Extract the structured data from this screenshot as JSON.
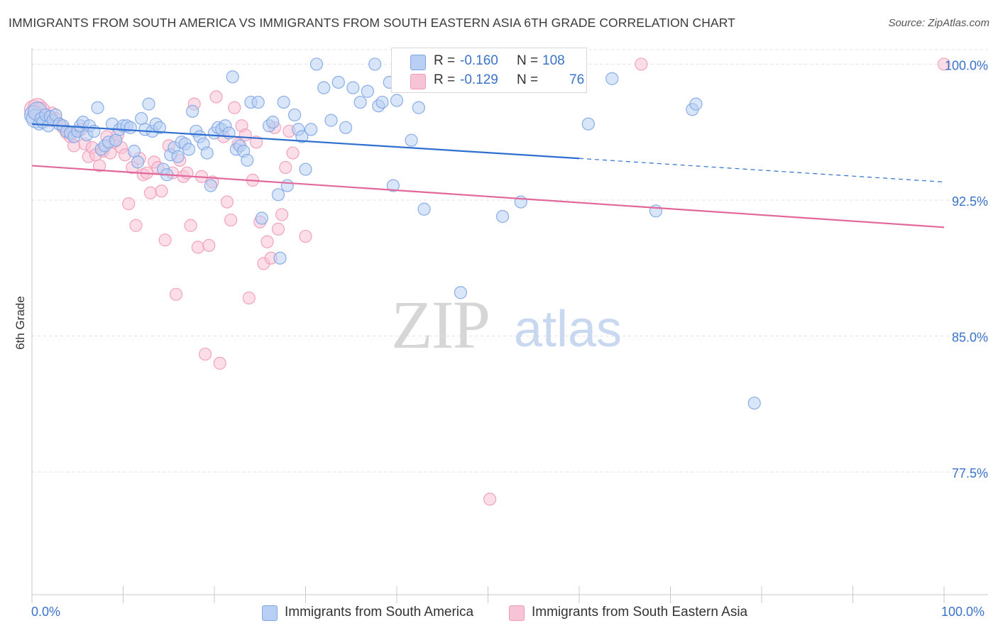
{
  "title": "IMMIGRANTS FROM SOUTH AMERICA VS IMMIGRANTS FROM SOUTH EASTERN ASIA 6TH GRADE CORRELATION CHART",
  "source": "Source: ZipAtlas.com",
  "watermark": {
    "zip": "ZIP",
    "atlas": "atlas"
  },
  "colors": {
    "blue": "#7ea6e6",
    "blue_fill": "#b9cff3",
    "blue_line": "#2f6fcf",
    "pink": "#f29ab8",
    "pink_fill": "#f7c3d6",
    "pink_line": "#e2679a",
    "axis_text": "#3a73c9",
    "grid": "#dde2ea"
  },
  "legend": {
    "rows": [
      {
        "r_label": "R =",
        "r_value": "-0.160",
        "n_label": "N =",
        "n_value": "108"
      },
      {
        "r_label": "R =",
        "r_value": "-0.129",
        "n_label": "N =",
        "n_value": "76"
      }
    ]
  },
  "bottom_legend": {
    "series1": "Immigrants from South America",
    "series2": "Immigrants from South Eastern Asia"
  },
  "x_axis": {
    "min_label": "0.0%",
    "max_label": "100.0%"
  },
  "chart_data": {
    "type": "scatter",
    "ylabel": "6th Grade",
    "xlim": [
      0,
      100
    ],
    "ylim": [
      71.2,
      100.8
    ],
    "yticks": [
      77.5,
      85.0,
      92.5,
      100.0
    ],
    "ytick_labels": [
      "77.5%",
      "85.0%",
      "92.5%",
      "100.0%"
    ],
    "grid": true,
    "series": [
      {
        "name": "Immigrants from South America",
        "r": -0.16,
        "n": 108,
        "trend": {
          "x0": 0,
          "y0": 96.7,
          "x1": 60,
          "y1": 94.8,
          "dash_to_x": 100,
          "dash_to_y": 93.5
        },
        "points": [
          [
            0.2,
            97.2
          ],
          [
            0.4,
            97.0
          ],
          [
            0.6,
            97.4
          ],
          [
            0.8,
            96.7
          ],
          [
            1.0,
            97.0
          ],
          [
            1.2,
            96.8
          ],
          [
            1.5,
            97.2
          ],
          [
            1.8,
            96.6
          ],
          [
            2.0,
            97.1
          ],
          [
            2.3,
            96.9
          ],
          [
            2.6,
            97.2
          ],
          [
            3.0,
            96.7
          ],
          [
            3.4,
            96.6
          ],
          [
            3.8,
            96.3
          ],
          [
            4.2,
            96.2
          ],
          [
            4.6,
            96.0
          ],
          [
            5.0,
            96.3
          ],
          [
            5.3,
            96.6
          ],
          [
            5.6,
            96.8
          ],
          [
            6.0,
            96.1
          ],
          [
            6.3,
            96.6
          ],
          [
            6.8,
            96.3
          ],
          [
            7.2,
            97.6
          ],
          [
            7.6,
            95.3
          ],
          [
            8.0,
            95.5
          ],
          [
            8.4,
            95.7
          ],
          [
            8.8,
            96.7
          ],
          [
            9.2,
            95.8
          ],
          [
            9.6,
            96.4
          ],
          [
            10.0,
            96.6
          ],
          [
            10.4,
            96.6
          ],
          [
            10.8,
            96.5
          ],
          [
            11.2,
            95.2
          ],
          [
            11.6,
            94.6
          ],
          [
            12.0,
            97.0
          ],
          [
            12.4,
            96.4
          ],
          [
            12.8,
            97.8
          ],
          [
            13.2,
            96.3
          ],
          [
            13.6,
            96.7
          ],
          [
            14.0,
            96.5
          ],
          [
            14.4,
            94.2
          ],
          [
            14.8,
            93.9
          ],
          [
            15.2,
            95.0
          ],
          [
            15.6,
            95.4
          ],
          [
            16.0,
            94.9
          ],
          [
            16.4,
            95.7
          ],
          [
            16.8,
            95.6
          ],
          [
            17.2,
            95.3
          ],
          [
            17.6,
            97.4
          ],
          [
            18.0,
            96.3
          ],
          [
            18.4,
            96.0
          ],
          [
            18.8,
            95.6
          ],
          [
            19.2,
            95.1
          ],
          [
            19.6,
            93.3
          ],
          [
            20.0,
            96.2
          ],
          [
            20.4,
            96.5
          ],
          [
            20.8,
            96.4
          ],
          [
            21.2,
            96.6
          ],
          [
            21.6,
            96.2
          ],
          [
            22.0,
            99.3
          ],
          [
            22.4,
            95.3
          ],
          [
            22.8,
            95.5
          ],
          [
            23.2,
            95.2
          ],
          [
            23.6,
            94.7
          ],
          [
            24.0,
            97.9
          ],
          [
            24.8,
            97.9
          ],
          [
            25.2,
            91.5
          ],
          [
            26.0,
            96.6
          ],
          [
            26.4,
            96.8
          ],
          [
            27.0,
            92.8
          ],
          [
            27.2,
            89.3
          ],
          [
            27.6,
            97.9
          ],
          [
            28.0,
            93.3
          ],
          [
            28.8,
            97.2
          ],
          [
            29.2,
            96.4
          ],
          [
            29.6,
            96.0
          ],
          [
            30.0,
            94.2
          ],
          [
            30.6,
            96.4
          ],
          [
            31.2,
            100.0
          ],
          [
            32.0,
            98.7
          ],
          [
            32.8,
            96.9
          ],
          [
            33.6,
            99.0
          ],
          [
            34.4,
            96.5
          ],
          [
            35.2,
            98.7
          ],
          [
            36.0,
            97.9
          ],
          [
            36.8,
            98.5
          ],
          [
            37.6,
            100.0
          ],
          [
            38.0,
            97.7
          ],
          [
            38.4,
            97.9
          ],
          [
            39.2,
            99.0
          ],
          [
            39.6,
            93.3
          ],
          [
            40.0,
            98.0
          ],
          [
            40.8,
            99.9
          ],
          [
            41.6,
            95.8
          ],
          [
            42.4,
            97.6
          ],
          [
            43.0,
            92.0
          ],
          [
            44.2,
            99.9
          ],
          [
            45.0,
            99.1
          ],
          [
            45.2,
            98.9
          ],
          [
            46.4,
            99.0
          ],
          [
            47.0,
            87.4
          ],
          [
            47.8,
            100.0
          ],
          [
            49.2,
            99.6
          ],
          [
            51.6,
            91.6
          ],
          [
            53.6,
            92.4
          ],
          [
            55.0,
            99.1
          ],
          [
            61.0,
            96.7
          ],
          [
            63.6,
            99.2
          ],
          [
            68.4,
            91.9
          ],
          [
            72.4,
            97.5
          ],
          [
            72.8,
            97.8
          ],
          [
            79.2,
            81.3
          ]
        ]
      },
      {
        "name": "Immigrants from South Eastern Asia",
        "r": -0.129,
        "n": 76,
        "trend": {
          "x0": 0,
          "y0": 94.4,
          "x1": 100,
          "y1": 91.0
        },
        "points": [
          [
            0.2,
            97.5
          ],
          [
            0.6,
            97.6
          ],
          [
            1.0,
            97.4
          ],
          [
            1.4,
            97.2
          ],
          [
            1.8,
            96.9
          ],
          [
            2.2,
            97.3
          ],
          [
            2.6,
            97.0
          ],
          [
            3.0,
            96.7
          ],
          [
            3.4,
            96.5
          ],
          [
            3.8,
            96.2
          ],
          [
            4.2,
            96.0
          ],
          [
            4.6,
            95.5
          ],
          [
            5.0,
            96.3
          ],
          [
            5.4,
            96.4
          ],
          [
            5.8,
            95.6
          ],
          [
            6.2,
            94.9
          ],
          [
            6.6,
            95.4
          ],
          [
            7.0,
            95.0
          ],
          [
            7.4,
            94.4
          ],
          [
            7.8,
            95.2
          ],
          [
            8.2,
            96.0
          ],
          [
            8.6,
            95.1
          ],
          [
            9.0,
            95.7
          ],
          [
            9.4,
            96.1
          ],
          [
            9.8,
            95.4
          ],
          [
            10.2,
            95.0
          ],
          [
            10.6,
            92.3
          ],
          [
            11.0,
            94.3
          ],
          [
            11.4,
            91.1
          ],
          [
            11.8,
            94.8
          ],
          [
            12.2,
            93.9
          ],
          [
            12.6,
            94.0
          ],
          [
            13.0,
            92.9
          ],
          [
            13.4,
            94.6
          ],
          [
            13.8,
            94.3
          ],
          [
            14.2,
            93.0
          ],
          [
            14.6,
            90.3
          ],
          [
            15.0,
            95.5
          ],
          [
            15.4,
            94.0
          ],
          [
            15.8,
            87.3
          ],
          [
            16.2,
            94.7
          ],
          [
            16.6,
            93.8
          ],
          [
            17.0,
            94.0
          ],
          [
            17.4,
            91.1
          ],
          [
            17.8,
            97.8
          ],
          [
            18.2,
            89.9
          ],
          [
            18.6,
            93.8
          ],
          [
            19.0,
            84.0
          ],
          [
            19.4,
            90.0
          ],
          [
            19.8,
            93.5
          ],
          [
            20.2,
            98.2
          ],
          [
            20.6,
            83.5
          ],
          [
            21.0,
            96.0
          ],
          [
            21.4,
            92.4
          ],
          [
            21.8,
            91.4
          ],
          [
            22.2,
            97.6
          ],
          [
            22.6,
            95.6
          ],
          [
            23.0,
            96.6
          ],
          [
            23.4,
            96.1
          ],
          [
            23.8,
            87.1
          ],
          [
            24.2,
            93.6
          ],
          [
            24.6,
            95.7
          ],
          [
            25.0,
            91.3
          ],
          [
            25.4,
            89.0
          ],
          [
            25.8,
            90.2
          ],
          [
            26.2,
            89.3
          ],
          [
            26.6,
            96.5
          ],
          [
            27.0,
            90.9
          ],
          [
            27.4,
            91.7
          ],
          [
            27.8,
            94.3
          ],
          [
            28.2,
            96.3
          ],
          [
            28.6,
            95.1
          ],
          [
            30.0,
            90.5
          ],
          [
            50.2,
            76.0
          ],
          [
            66.8,
            100.0
          ],
          [
            100.0,
            100.0
          ]
        ]
      }
    ]
  }
}
